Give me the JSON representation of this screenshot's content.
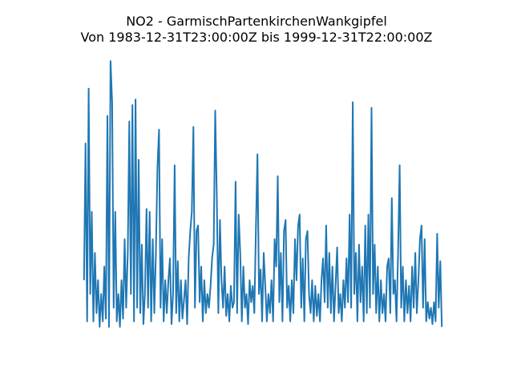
{
  "chart_data": {
    "type": "line",
    "title": "NO2 - GarmischPartenkirchenWankgipfel\nVon 1983-12-31T23:00:00Z bis 1999-12-31T22:00:00Z",
    "series": [
      {
        "color": "#1f77b4",
        "values": [
          20,
          70,
          5,
          90,
          15,
          45,
          5,
          30,
          8,
          20,
          3,
          15,
          5,
          25,
          6,
          80,
          3,
          100,
          85,
          10,
          45,
          5,
          15,
          3,
          20,
          6,
          35,
          10,
          30,
          78,
          15,
          84,
          5,
          86,
          10,
          64,
          8,
          33,
          4,
          15,
          46,
          10,
          45,
          5,
          35,
          8,
          30,
          61,
          75,
          10,
          35,
          5,
          20,
          8,
          20,
          28,
          4,
          15,
          62,
          8,
          27,
          5,
          20,
          6,
          13,
          20,
          4,
          28,
          38,
          45,
          76,
          10,
          38,
          40,
          12,
          25,
          5,
          20,
          8,
          15,
          10,
          18,
          28,
          33,
          82,
          50,
          8,
          42,
          20,
          10,
          25,
          7,
          15,
          5,
          18,
          10,
          12,
          56,
          8,
          44,
          30,
          5,
          25,
          10,
          15,
          4,
          20,
          12,
          18,
          8,
          38,
          66,
          15,
          24,
          5,
          30,
          18,
          5,
          15,
          8,
          20,
          5,
          35,
          25,
          58,
          12,
          30,
          5,
          38,
          42,
          10,
          18,
          5,
          20,
          8,
          35,
          20,
          40,
          44,
          10,
          28,
          5,
          35,
          38,
          15,
          8,
          20,
          5,
          18,
          7,
          15,
          5,
          20,
          28,
          12,
          40,
          10,
          30,
          8,
          25,
          5,
          18,
          32,
          8,
          15,
          5,
          20,
          10,
          28,
          12,
          44,
          10,
          85,
          15,
          30,
          5,
          33,
          12,
          25,
          5,
          40,
          8,
          44,
          10,
          83,
          15,
          33,
          8,
          25,
          5,
          20,
          8,
          15,
          5,
          25,
          28,
          8,
          50,
          15,
          20,
          5,
          30,
          62,
          10,
          25,
          5,
          20,
          8,
          18,
          5,
          25,
          10,
          30,
          8,
          20,
          35,
          40,
          10,
          35,
          5,
          12,
          6,
          10,
          4,
          12,
          5,
          37,
          10,
          27,
          3
        ]
      }
    ]
  }
}
